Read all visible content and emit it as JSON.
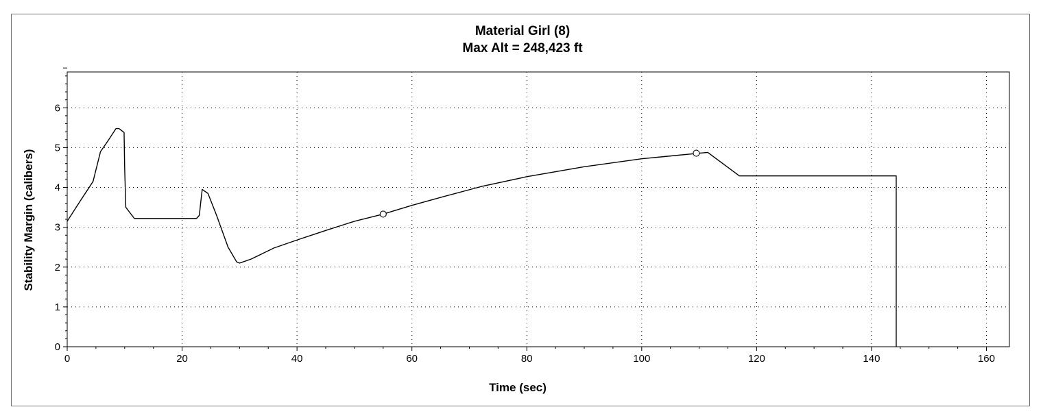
{
  "chart_data": {
    "type": "line",
    "title": "Material Girl (8)",
    "subtitle": "Max Alt = 248,423 ft",
    "xlabel": "Time (sec)",
    "ylabel": "Stability Margin (calibers)",
    "xlim": [
      0,
      164
    ],
    "ylim": [
      0,
      6.9
    ],
    "x_ticks": [
      0,
      20,
      40,
      60,
      80,
      100,
      120,
      140,
      160
    ],
    "y_ticks": [
      0,
      1,
      2,
      3,
      4,
      5,
      6
    ],
    "grid": true,
    "grid_style": "dotted",
    "line_color": "#000000",
    "series": [
      {
        "x": [
          0,
          2,
          4.5,
          5.8,
          7,
          8.5,
          9,
          9.9,
          10,
          10.2,
          11.7,
          22.5,
          23,
          23.3,
          23.5,
          24.5,
          26,
          28,
          29.5,
          30,
          32,
          36,
          40,
          45,
          50,
          55,
          60,
          65,
          72,
          80,
          90,
          100,
          105,
          110,
          111.5,
          117,
          144.3,
          144.3
        ],
        "y": [
          3.15,
          3.6,
          4.15,
          4.9,
          5.15,
          5.48,
          5.48,
          5.38,
          4.5,
          3.5,
          3.22,
          3.22,
          3.3,
          3.7,
          3.95,
          3.85,
          3.3,
          2.5,
          2.13,
          2.1,
          2.2,
          2.48,
          2.68,
          2.92,
          3.15,
          3.33,
          3.55,
          3.75,
          4.02,
          4.27,
          4.52,
          4.72,
          4.79,
          4.86,
          4.88,
          4.29,
          4.29,
          0
        ]
      }
    ],
    "markers": [
      {
        "x": 55,
        "y": 3.33
      },
      {
        "x": 109.5,
        "y": 4.86
      }
    ]
  }
}
